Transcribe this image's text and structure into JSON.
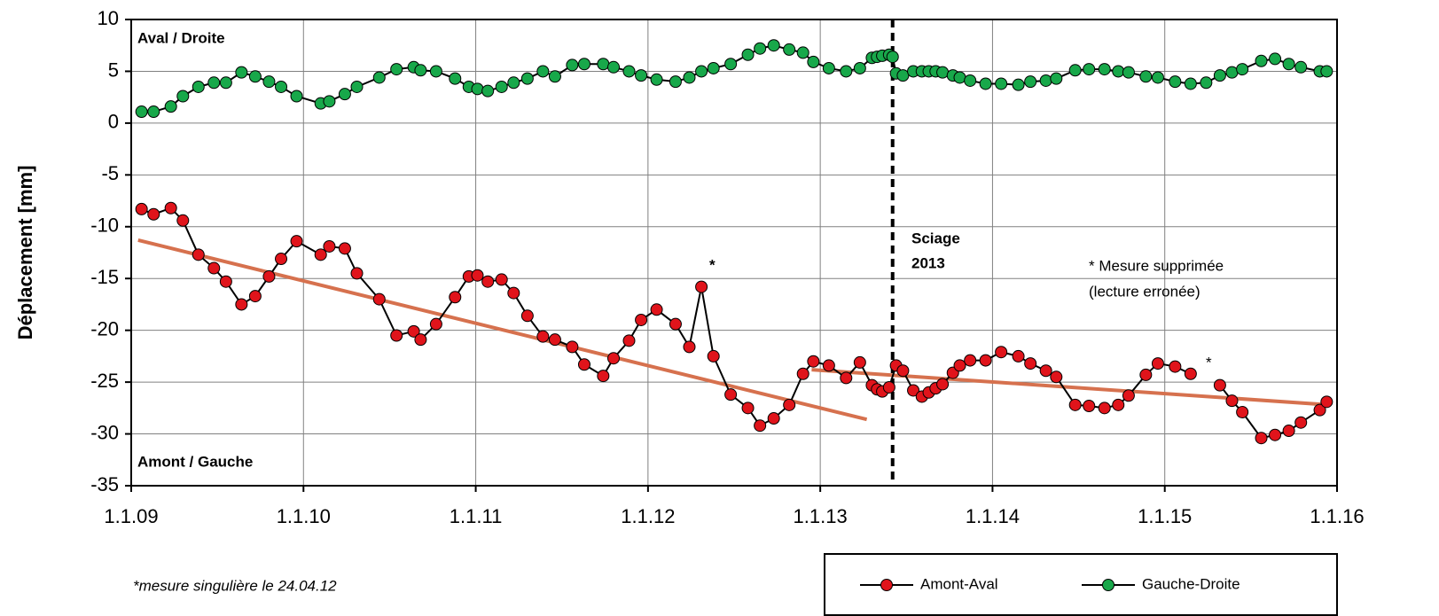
{
  "chart_data": {
    "type": "line",
    "ylabel": "Déplacement [mm]",
    "xlim": [
      2009,
      2016
    ],
    "ylim": [
      -35,
      10
    ],
    "yticks": [
      10,
      5,
      0,
      -5,
      -10,
      -15,
      -20,
      -25,
      -30,
      -35
    ],
    "xticks": [
      {
        "value": 2009,
        "label": "1.1.09"
      },
      {
        "value": 2010,
        "label": "1.1.10"
      },
      {
        "value": 2011,
        "label": "1.1.11"
      },
      {
        "value": 2012,
        "label": "1.1.12"
      },
      {
        "value": 2013,
        "label": "1.1.13"
      },
      {
        "value": 2014,
        "label": "1.1.14"
      },
      {
        "value": 2015,
        "label": "1.1.15"
      },
      {
        "value": 2016,
        "label": "1.1.16"
      }
    ],
    "grid": true,
    "legend": "bottom-right",
    "vline": 2013.42,
    "series": [
      {
        "name": "Amont-Aval",
        "color": "#e0141b",
        "x": [
          2009.06,
          2009.13,
          2009.23,
          2009.3,
          2009.39,
          2009.48,
          2009.55,
          2009.64,
          2009.72,
          2009.8,
          2009.87,
          2009.96,
          2010.1,
          2010.15,
          2010.24,
          2010.31,
          2010.44,
          2010.54,
          2010.64,
          2010.68,
          2010.77,
          2010.88,
          2010.96,
          2011.01,
          2011.07,
          2011.15,
          2011.22,
          2011.3,
          2011.39,
          2011.46,
          2011.56,
          2011.63,
          2011.74,
          2011.8,
          2011.89,
          2011.96,
          2012.05,
          2012.16,
          2012.24,
          2012.31,
          2012.38,
          2012.48,
          2012.58,
          2012.65,
          2012.73,
          2012.82,
          2012.9,
          2012.96,
          2013.05,
          2013.15,
          2013.23,
          2013.3,
          2013.33,
          2013.36,
          2013.4,
          2013.44,
          2013.48,
          2013.54,
          2013.59,
          2013.63,
          2013.67,
          2013.71,
          2013.77,
          2013.81,
          2013.87,
          2013.96,
          2014.05,
          2014.15,
          2014.22,
          2014.31,
          2014.37,
          2014.48,
          2014.56,
          2014.65,
          2014.73,
          2014.79,
          2014.89,
          2014.96,
          2015.06,
          2015.15,
          2015.22,
          2015.32,
          2015.39,
          2015.45,
          2015.56,
          2015.64,
          2015.72,
          2015.79,
          2015.9,
          2015.94
        ],
        "values": [
          -8.3,
          -8.8,
          -8.2,
          -9.4,
          -12.7,
          -14.0,
          -15.3,
          -17.5,
          -16.7,
          -14.8,
          -13.1,
          -11.4,
          -12.7,
          -11.9,
          -12.1,
          -14.5,
          -17.0,
          -20.5,
          -20.1,
          -20.9,
          -19.4,
          -16.8,
          -14.8,
          -14.7,
          -15.3,
          -15.1,
          -16.4,
          -18.6,
          -20.6,
          -20.9,
          -21.6,
          -23.3,
          -24.4,
          -22.7,
          -21.0,
          -19.0,
          -18.0,
          -19.4,
          -21.6,
          -15.8,
          -22.5,
          -26.2,
          -27.5,
          -29.2,
          -28.5,
          -27.2,
          -24.2,
          -23.0,
          -23.4,
          -24.6,
          -23.1,
          -25.3,
          -25.7,
          -25.9,
          -25.5,
          -23.4,
          -23.9,
          -25.8,
          -26.4,
          -26.0,
          -25.6,
          -25.2,
          -24.1,
          -23.4,
          -22.9,
          -22.9,
          -22.1,
          -22.5,
          -23.2,
          -23.9,
          -24.5,
          -27.2,
          -27.3,
          -27.5,
          -27.2,
          -26.3,
          -24.3,
          -23.2,
          -23.5,
          -24.2,
          null,
          -25.3,
          -26.8,
          -27.9,
          -30.4,
          -30.1,
          -29.7,
          -28.9,
          -27.7,
          -26.9
        ]
      },
      {
        "name": "Gauche-Droite",
        "color": "#18a84a",
        "x": [
          2009.06,
          2009.13,
          2009.23,
          2009.3,
          2009.39,
          2009.48,
          2009.55,
          2009.64,
          2009.72,
          2009.8,
          2009.87,
          2009.96,
          2010.1,
          2010.15,
          2010.24,
          2010.31,
          2010.44,
          2010.54,
          2010.64,
          2010.68,
          2010.77,
          2010.88,
          2010.96,
          2011.01,
          2011.07,
          2011.15,
          2011.22,
          2011.3,
          2011.39,
          2011.46,
          2011.56,
          2011.63,
          2011.74,
          2011.8,
          2011.89,
          2011.96,
          2012.05,
          2012.16,
          2012.24,
          2012.31,
          2012.38,
          2012.48,
          2012.58,
          2012.65,
          2012.73,
          2012.82,
          2012.9,
          2012.96,
          2013.05,
          2013.15,
          2013.23,
          2013.3,
          2013.33,
          2013.36,
          2013.4,
          2013.42,
          2013.44,
          2013.48,
          2013.54,
          2013.59,
          2013.63,
          2013.67,
          2013.71,
          2013.77,
          2013.81,
          2013.87,
          2013.96,
          2014.05,
          2014.15,
          2014.22,
          2014.31,
          2014.37,
          2014.48,
          2014.56,
          2014.65,
          2014.73,
          2014.79,
          2014.89,
          2014.96,
          2015.06,
          2015.15,
          2015.24,
          2015.32,
          2015.39,
          2015.45,
          2015.56,
          2015.64,
          2015.72,
          2015.79,
          2015.9,
          2015.94
        ],
        "values": [
          1.1,
          1.1,
          1.6,
          2.6,
          3.5,
          3.9,
          3.9,
          4.9,
          4.5,
          4.0,
          3.5,
          2.6,
          1.9,
          2.1,
          2.8,
          3.5,
          4.4,
          5.2,
          5.4,
          5.1,
          5.0,
          4.3,
          3.5,
          3.3,
          3.1,
          3.5,
          3.9,
          4.3,
          5.0,
          4.5,
          5.6,
          5.7,
          5.7,
          5.4,
          5.0,
          4.6,
          4.2,
          4.0,
          4.4,
          5.0,
          5.3,
          5.7,
          6.6,
          7.2,
          7.5,
          7.1,
          6.8,
          5.9,
          5.3,
          5.0,
          5.3,
          6.3,
          6.4,
          6.5,
          6.6,
          6.4,
          4.8,
          4.6,
          5.0,
          5.0,
          5.0,
          5.0,
          4.9,
          4.6,
          4.4,
          4.1,
          3.8,
          3.8,
          3.7,
          4.0,
          4.1,
          4.3,
          5.1,
          5.2,
          5.2,
          5.0,
          4.9,
          4.5,
          4.4,
          4.0,
          3.8,
          3.9,
          4.6,
          4.9,
          5.2,
          6.0,
          6.2,
          5.7,
          5.4,
          5.0,
          5.0
        ]
      }
    ],
    "trendlines": {
      "color": "#d6714e",
      "lines": [
        {
          "x": [
            2009.04,
            2013.27
          ],
          "values": [
            -11.3,
            -28.6
          ]
        },
        {
          "x": [
            2012.95,
            2015.96
          ],
          "values": [
            -23.8,
            -27.2
          ]
        }
      ]
    },
    "annotations": [
      "Aval / Droite",
      "Amont / Gauche",
      "Sciage",
      "2013",
      "*",
      "* Mesure supprimée",
      "(lecture erronée)",
      "*"
    ],
    "footnote": "*mesure singulière le 24.04.12"
  }
}
